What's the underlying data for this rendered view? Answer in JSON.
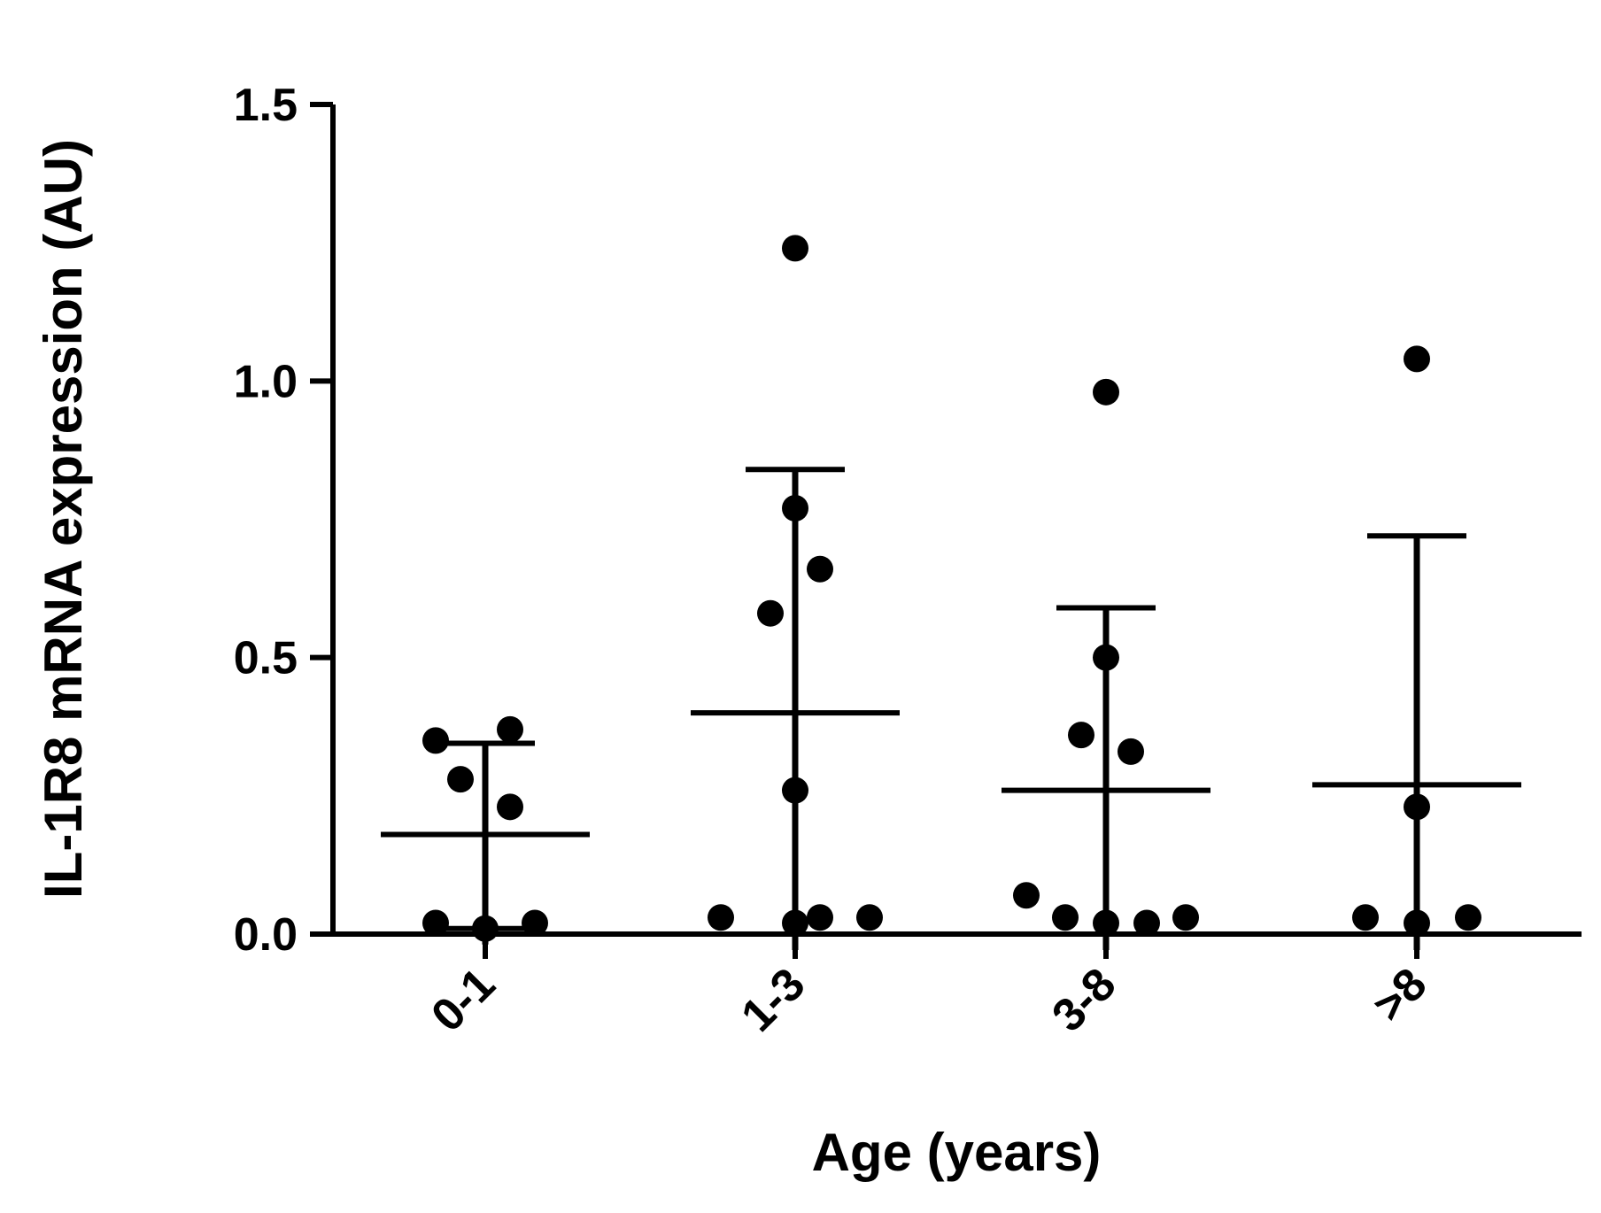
{
  "chart_data": {
    "type": "scatter",
    "title": "",
    "xlabel": "Age (years)",
    "ylabel": "IL-1R8 mRNA expression (AU)",
    "ylim": [
      0,
      1.5
    ],
    "yticks": [
      {
        "value": 0.0,
        "label": "0.0"
      },
      {
        "value": 0.5,
        "label": "0.5"
      },
      {
        "value": 1.0,
        "label": "1.0"
      },
      {
        "value": 1.5,
        "label": "1.5"
      }
    ],
    "categories": [
      "0-1",
      "1-3",
      "3-8",
      ">8"
    ],
    "groups": [
      {
        "category": "0-1",
        "mean": 0.18,
        "sd_upper": 0.345,
        "sd_lower": 0.01,
        "points": [
          0.35,
          0.37,
          0.28,
          0.23,
          0.02,
          0.01,
          0.02
        ]
      },
      {
        "category": "1-3",
        "mean": 0.4,
        "sd_upper": 0.84,
        "sd_lower": 0.0,
        "points": [
          1.24,
          0.77,
          0.66,
          0.58,
          0.26,
          0.03,
          0.02,
          0.03,
          0.03
        ]
      },
      {
        "category": "3-8",
        "mean": 0.26,
        "sd_upper": 0.59,
        "sd_lower": 0.0,
        "points": [
          0.98,
          0.5,
          0.36,
          0.33,
          0.07,
          0.03,
          0.02,
          0.02,
          0.03
        ]
      },
      {
        "category": ">8",
        "mean": 0.27,
        "sd_upper": 0.72,
        "sd_lower": 0.0,
        "points": [
          1.04,
          0.23,
          0.03,
          0.02,
          0.03
        ]
      }
    ],
    "colors": {
      "marks": "#000000",
      "background": "#ffffff"
    }
  }
}
